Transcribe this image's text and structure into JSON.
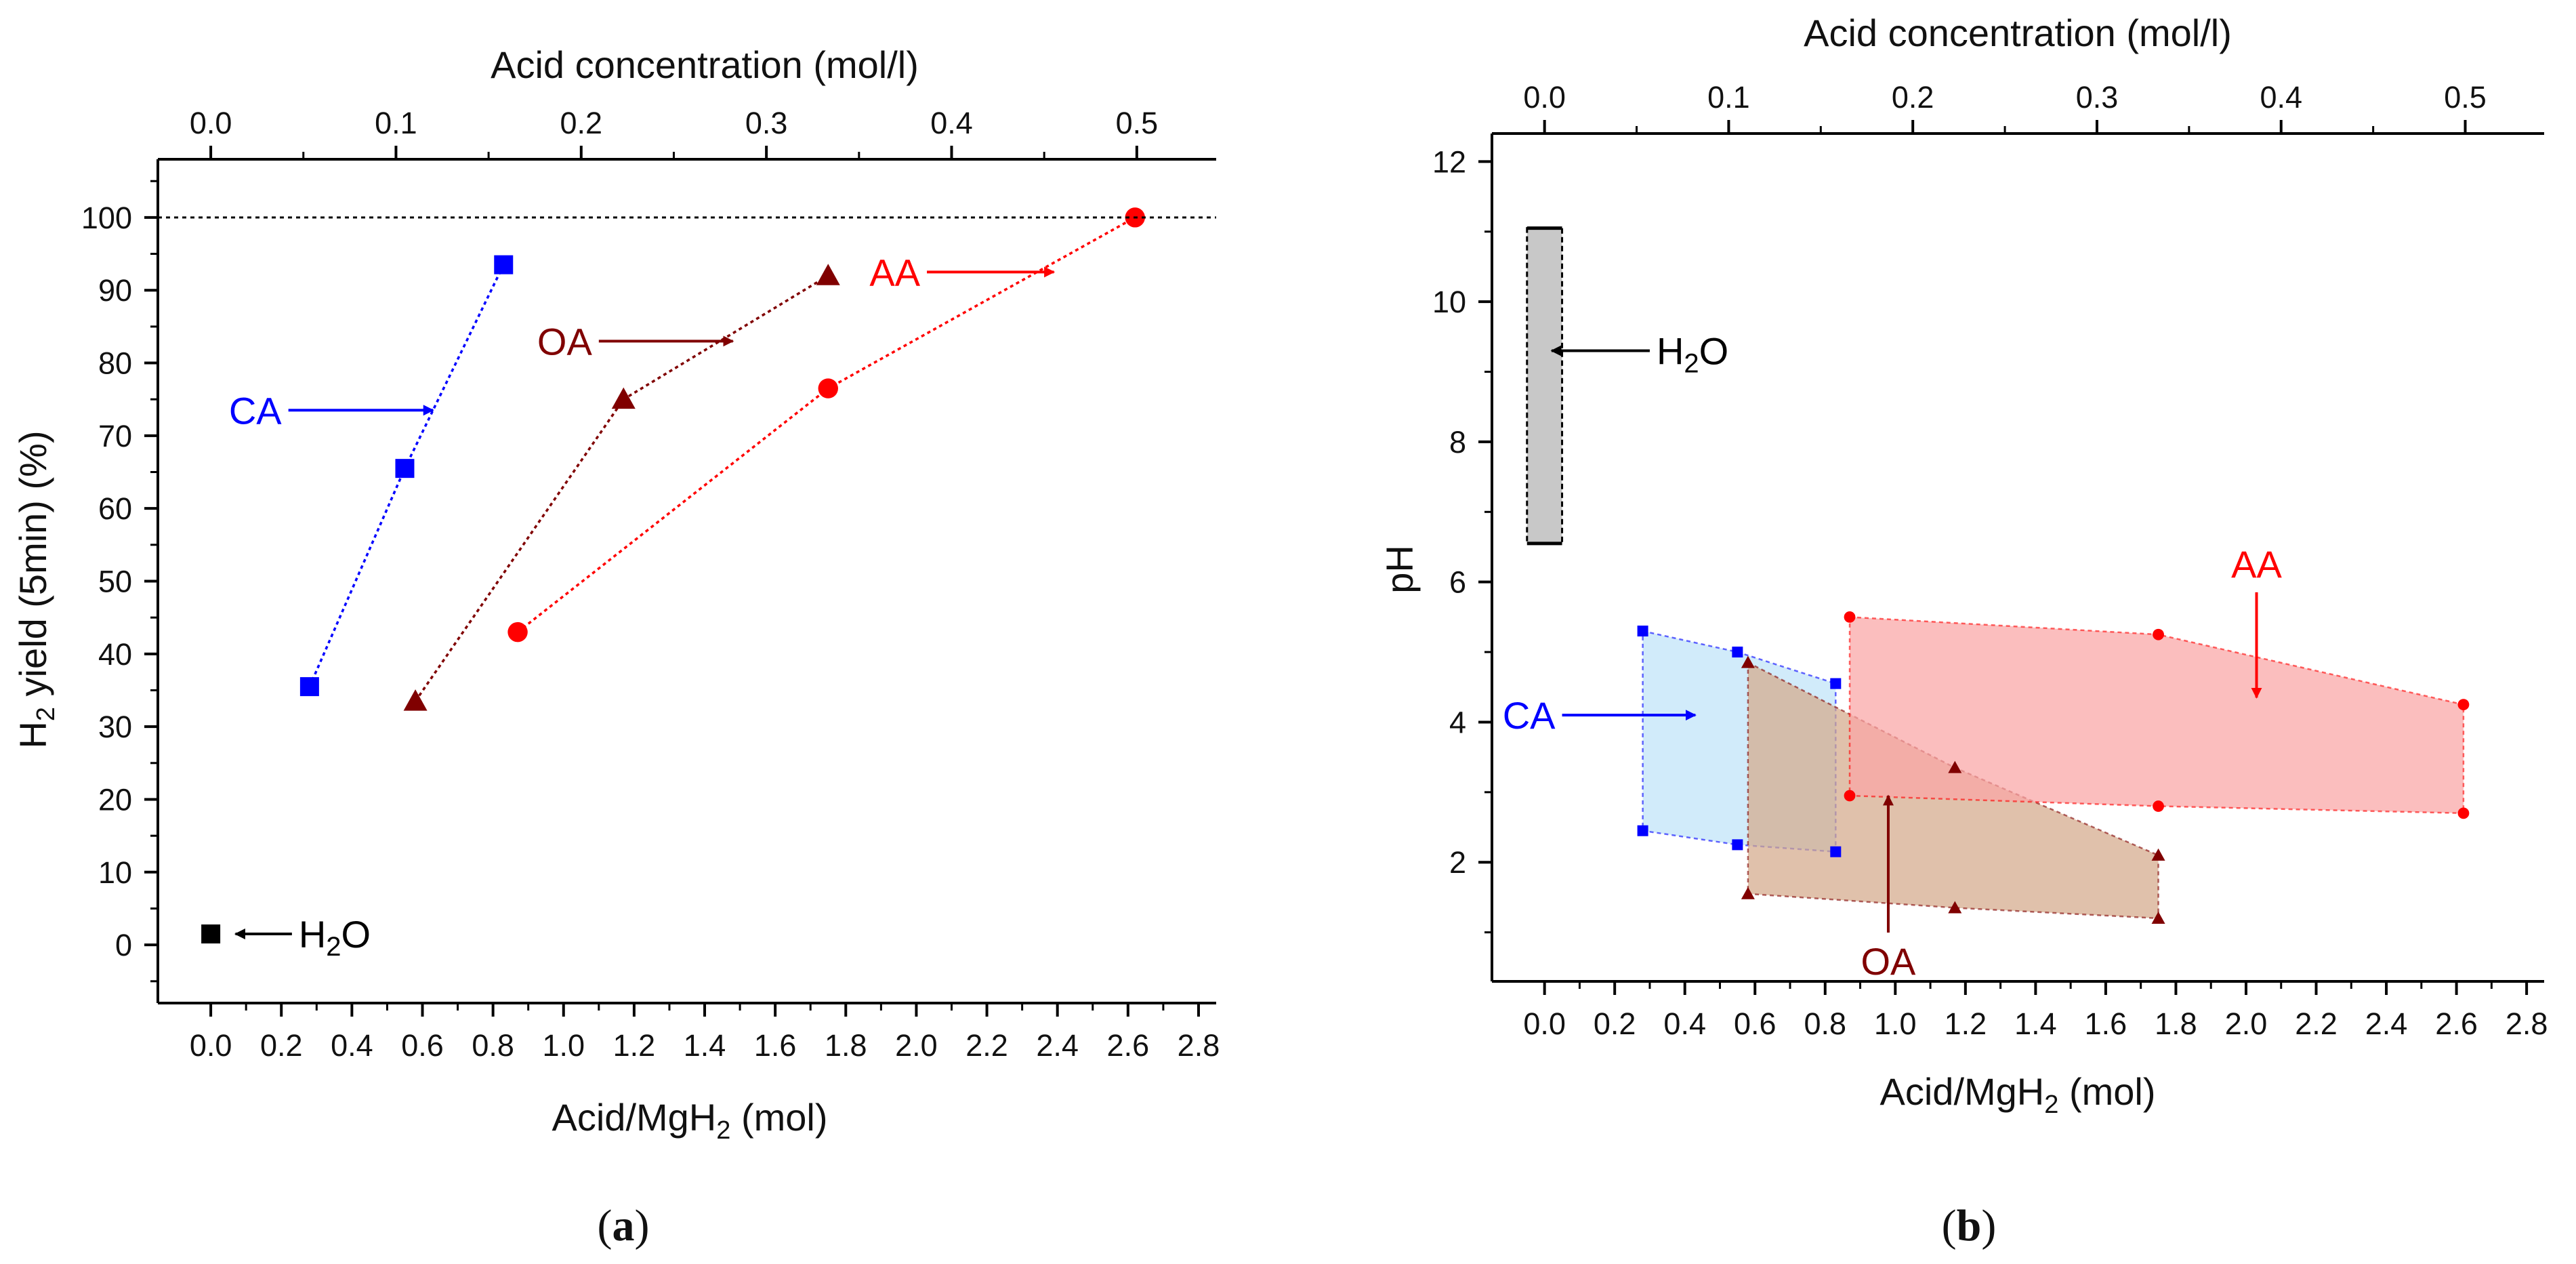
{
  "chart_data": [
    {
      "type": "scatter",
      "panel_label": "(a)",
      "xlabel": "Acid/MgH",
      "xlabel_sub": "2",
      "xlabel_suffix": " (mol)",
      "ylabel": "H",
      "ylabel_sub": "2",
      "ylabel_suffix": " yield (5min) (%)",
      "top_xlabel": "Acid concentration (mol/l)",
      "xlim": [
        -0.15,
        2.85
      ],
      "ylim": [
        -8,
        108
      ],
      "x_ticks": [
        0.0,
        0.2,
        0.4,
        0.6,
        0.8,
        1.0,
        1.2,
        1.4,
        1.6,
        1.8,
        2.0,
        2.2,
        2.4,
        2.6,
        2.8
      ],
      "x_tick_labels": [
        "0.0",
        "0.2",
        "0.4",
        "0.6",
        "0.8",
        "1.0",
        "1.2",
        "1.4",
        "1.6",
        "1.8",
        "2.0",
        "2.2",
        "2.4",
        "2.6",
        "2.8"
      ],
      "y_ticks": [
        0,
        10,
        20,
        30,
        40,
        50,
        60,
        70,
        80,
        90,
        100
      ],
      "y_tick_labels": [
        "0",
        "10",
        "20",
        "30",
        "40",
        "50",
        "60",
        "70",
        "80",
        "90",
        "100"
      ],
      "top_ticks": [
        0.0,
        0.1,
        0.2,
        0.3,
        0.4,
        0.5
      ],
      "top_tick_labels": [
        "0.0",
        "0.1",
        "0.2",
        "0.3",
        "0.4",
        "0.5"
      ],
      "top_to_bottom_factor": 5.25,
      "reference_line_y": 100,
      "grid": false,
      "series": [
        {
          "name": "CA",
          "color": "#0000ff",
          "marker": "square",
          "x": [
            0.28,
            0.55,
            0.83
          ],
          "y": [
            35.5,
            65.5,
            93.5
          ]
        },
        {
          "name": "OA",
          "color": "#800000",
          "marker": "triangle",
          "x": [
            0.58,
            1.17,
            1.75
          ],
          "y": [
            33.5,
            75.0,
            92.0
          ]
        },
        {
          "name": "AA",
          "color": "#ff0000",
          "marker": "circle",
          "x": [
            0.87,
            1.75,
            2.62
          ],
          "y": [
            43.0,
            76.5,
            100.0
          ]
        },
        {
          "name": "H2O",
          "color": "#000000",
          "marker": "square",
          "x": [
            0.0
          ],
          "y": [
            1.5
          ]
        }
      ],
      "annotations": [
        {
          "text": "CA",
          "color": "#0000ff",
          "at": [
            0.22,
            73.5
          ],
          "arrow_to": [
            0.63,
            73.5
          ]
        },
        {
          "text": "OA",
          "color": "#800000",
          "at": [
            1.1,
            83.0
          ],
          "arrow_to": [
            1.48,
            83.0
          ]
        },
        {
          "text": "AA",
          "color": "#ff0000",
          "at": [
            2.03,
            92.5
          ],
          "arrow_to": [
            2.39,
            92.5
          ]
        },
        {
          "text": "H",
          "sub": "2",
          "suffix": "O",
          "color": "#000000",
          "at": [
            0.23,
            1.5
          ],
          "arrow_to": [
            0.07,
            1.5
          ]
        }
      ]
    },
    {
      "type": "area",
      "panel_label": "(b)",
      "xlabel": "Acid/MgH",
      "xlabel_sub": "2",
      "xlabel_suffix": " (mol)",
      "ylabel": "pH",
      "top_xlabel": "Acid concentration (mol/l)",
      "xlim": [
        -0.15,
        2.85
      ],
      "ylim": [
        0.3,
        12.4
      ],
      "x_ticks": [
        0.0,
        0.2,
        0.4,
        0.6,
        0.8,
        1.0,
        1.2,
        1.4,
        1.6,
        1.8,
        2.0,
        2.2,
        2.4,
        2.6,
        2.8
      ],
      "x_tick_labels": [
        "0.0",
        "0.2",
        "0.4",
        "0.6",
        "0.8",
        "1.0",
        "1.2",
        "1.4",
        "1.6",
        "1.8",
        "2.0",
        "2.2",
        "2.4",
        "2.6",
        "2.8"
      ],
      "y_ticks": [
        2,
        4,
        6,
        8,
        10,
        12
      ],
      "y_tick_labels": [
        "2",
        "4",
        "6",
        "8",
        "10",
        "12"
      ],
      "top_ticks": [
        0.0,
        0.1,
        0.2,
        0.3,
        0.4,
        0.5
      ],
      "top_tick_labels": [
        "0.0",
        "0.1",
        "0.2",
        "0.3",
        "0.4",
        "0.5"
      ],
      "top_to_bottom_factor": 5.25,
      "grid": false,
      "h2o_range": {
        "name": "H2O",
        "x_min": -0.05,
        "x_max": 0.05,
        "y_min": 6.55,
        "y_max": 11.05,
        "fill": "#c8c8c8"
      },
      "series": [
        {
          "name": "CA",
          "color": "#0000ff",
          "fill": "#bfe3f8",
          "marker": "square",
          "x": [
            0.28,
            0.55,
            0.83,
            0.83,
            0.55,
            0.28
          ],
          "y": [
            5.3,
            5.0,
            4.55,
            2.15,
            2.25,
            2.45
          ]
        },
        {
          "name": "OA",
          "color": "#800000",
          "fill": "#d4a98b",
          "marker": "triangle",
          "x": [
            0.58,
            1.17,
            1.75,
            1.75,
            1.17,
            0.58
          ],
          "y": [
            4.85,
            3.35,
            2.1,
            1.2,
            1.35,
            1.55
          ]
        },
        {
          "name": "AA",
          "color": "#ff0000",
          "fill": "#f9a5a5",
          "marker": "circle",
          "x": [
            0.87,
            1.75,
            2.62,
            2.62,
            1.75,
            0.87
          ],
          "y": [
            5.5,
            5.25,
            4.25,
            2.7,
            2.8,
            2.95
          ]
        }
      ],
      "annotations": [
        {
          "text": "CA",
          "color": "#0000ff",
          "at": [
            0.05,
            4.1
          ],
          "arrow_to": [
            0.43,
            4.1
          ]
        },
        {
          "text": "AA",
          "color": "#ff0000",
          "at": [
            2.03,
            5.95
          ],
          "arrow_to": [
            2.03,
            4.35
          ],
          "vertical": true
        },
        {
          "text": "OA",
          "color": "#800000",
          "at": [
            0.98,
            0.9
          ],
          "arrow_to": [
            0.98,
            2.95
          ],
          "vertical": true
        },
        {
          "text": "H",
          "sub": "2",
          "suffix": "O",
          "color": "#000000",
          "at": [
            0.3,
            9.3
          ],
          "arrow_to": [
            0.02,
            9.3
          ]
        }
      ]
    }
  ]
}
